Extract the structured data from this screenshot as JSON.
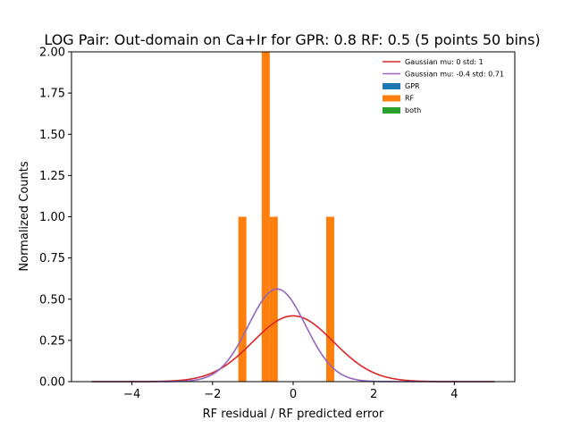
{
  "chart_data": {
    "type": "bar",
    "title": "LOG Pair: Out-domain on Ca+Ir for GPR: 0.8 RF: 0.5 (5 points 50 bins)",
    "xlabel": "RF residual / RF predicted error",
    "ylabel": "Normalized Counts",
    "xlim": [
      -5.5,
      5.5
    ],
    "ylim": [
      0,
      2.0
    ],
    "x_ticks": [
      -4,
      -2,
      0,
      2,
      4
    ],
    "x_tick_labels": [
      "−4",
      "−2",
      "0",
      "2",
      "4"
    ],
    "y_ticks": [
      0,
      0.25,
      0.5,
      0.75,
      1.0,
      1.25,
      1.5,
      1.75,
      2.0
    ],
    "y_tick_labels": [
      "0.00",
      "0.25",
      "0.50",
      "0.75",
      "1.00",
      "1.25",
      "1.50",
      "1.75",
      "2.00"
    ],
    "grid": false,
    "legend_position": "top-right",
    "histogram_bars": [
      {
        "series": "RF",
        "x_left": -1.36,
        "x_right": -1.16,
        "value": 1.0
      },
      {
        "series": "RF",
        "x_left": -0.78,
        "x_right": -0.58,
        "value": 2.0
      },
      {
        "series": "RF",
        "x_left": -0.58,
        "x_right": -0.38,
        "value": 1.0
      },
      {
        "series": "RF",
        "x_left": 0.82,
        "x_right": 1.02,
        "value": 1.0
      }
    ],
    "series": [
      {
        "name": "Gaussian mu: 0 std: 1",
        "kind": "line",
        "color": "#d62728",
        "mu": 0,
        "std": 1,
        "x_range": [
          -5,
          5
        ]
      },
      {
        "name": "Gaussian mu: -0.4 std: 0.71",
        "kind": "line",
        "color": "#9467bd",
        "mu": -0.4,
        "std": 0.71,
        "x_range": [
          -5,
          5
        ]
      },
      {
        "name": "GPR",
        "kind": "bar",
        "color": "#1f77b4"
      },
      {
        "name": "RF",
        "kind": "bar",
        "color": "#ff7f0e"
      },
      {
        "name": "both",
        "kind": "bar",
        "color": "#2ca02c"
      }
    ]
  }
}
